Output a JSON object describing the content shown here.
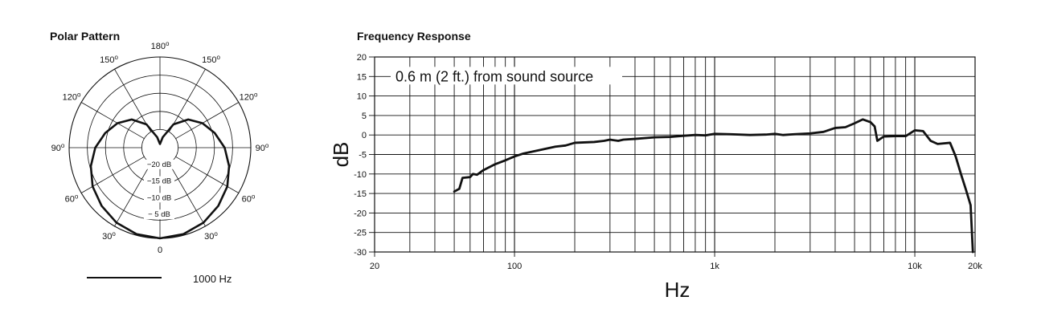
{
  "polar": {
    "title": "Polar Pattern",
    "angle_labels": [
      {
        "text": "180",
        "sup": "o",
        "deg": 180
      },
      {
        "text": "150",
        "sup": "o",
        "deg": 150
      },
      {
        "text": "150",
        "sup": "o",
        "deg": 210
      },
      {
        "text": "120",
        "sup": "o",
        "deg": 120
      },
      {
        "text": "120",
        "sup": "o",
        "deg": 240
      },
      {
        "text": "90",
        "sup": "o",
        "deg": 90
      },
      {
        "text": "90",
        "sup": "o",
        "deg": 270
      },
      {
        "text": "60",
        "sup": "o",
        "deg": 60
      },
      {
        "text": "60",
        "sup": "o",
        "deg": 300
      },
      {
        "text": "30",
        "sup": "o",
        "deg": 30
      },
      {
        "text": "30",
        "sup": "o",
        "deg": 330
      },
      {
        "text": "0",
        "sup": "",
        "deg": 0
      }
    ],
    "ring_labels": [
      "−20 dB",
      "−15 dB",
      "−10 dB",
      "− 5 dB"
    ],
    "legend_label": "1000 Hz"
  },
  "chart_data": [
    {
      "type": "polar",
      "title": "Polar Pattern",
      "pattern": "supercardioid",
      "frequency": "1000 Hz",
      "rings_db": [
        -20,
        -15,
        -10,
        -5,
        0
      ],
      "spokes_deg": [
        0,
        30,
        60,
        90,
        120,
        150,
        180,
        210,
        240,
        270,
        300,
        330
      ],
      "series": [
        {
          "name": "1000 Hz",
          "angles_deg": [
            0,
            15,
            30,
            45,
            60,
            75,
            90,
            105,
            120,
            135,
            150,
            165,
            180
          ],
          "level_db": [
            0,
            -0.3,
            -1.1,
            -2.3,
            -3.6,
            -5.3,
            -7.2,
            -9.4,
            -11.5,
            -14.0,
            -17.6,
            -22.0,
            -24.0
          ]
        }
      ]
    },
    {
      "type": "line",
      "title": "Frequency Response",
      "xlabel": "Hz",
      "ylabel": "dB",
      "xscale": "log",
      "xlim": [
        20,
        20000
      ],
      "ylim": [
        -30,
        20
      ],
      "xticks": [
        {
          "value": 20,
          "label": "20"
        },
        {
          "value": 100,
          "label": "100"
        },
        {
          "value": 1000,
          "label": "1k"
        },
        {
          "value": 10000,
          "label": "10k"
        },
        {
          "value": 20000,
          "label": "20k"
        }
      ],
      "yticks": [
        20,
        15,
        10,
        5,
        0,
        -5,
        -10,
        -15,
        -20,
        -25,
        -30
      ],
      "grid": true,
      "annotation": "0.6 m (2 ft.) from sound source",
      "series": [
        {
          "x": [
            50,
            53,
            55,
            60,
            62,
            65,
            70,
            80,
            90,
            100,
            110,
            130,
            160,
            180,
            200,
            250,
            280,
            300,
            330,
            350,
            400,
            500,
            600,
            700,
            800,
            900,
            1000,
            1200,
            1500,
            1800,
            2000,
            2200,
            2500,
            3000,
            3500,
            4000,
            4500,
            5000,
            5500,
            6000,
            6300,
            6500,
            7000,
            8000,
            9000,
            10000,
            11000,
            12000,
            13000,
            15000,
            16000,
            17000,
            18000,
            19000,
            19500
          ],
          "y": [
            -14.5,
            -13.8,
            -11,
            -10.8,
            -10,
            -10.2,
            -9,
            -7.5,
            -6.5,
            -5.5,
            -4.8,
            -4,
            -3,
            -2.7,
            -2,
            -1.8,
            -1.5,
            -1.2,
            -1.5,
            -1.2,
            -1,
            -0.6,
            -0.5,
            -0.2,
            0,
            -0.1,
            0.3,
            0.2,
            0,
            0.1,
            0.3,
            0,
            0.2,
            0.4,
            0.8,
            1.8,
            2.0,
            3.0,
            4.0,
            3.3,
            2.2,
            -1.5,
            -0.4,
            -0.3,
            -0.3,
            1.2,
            1.0,
            -1.5,
            -2.3,
            -2,
            -5.5,
            -10,
            -14,
            -18,
            -30
          ]
        }
      ]
    }
  ]
}
